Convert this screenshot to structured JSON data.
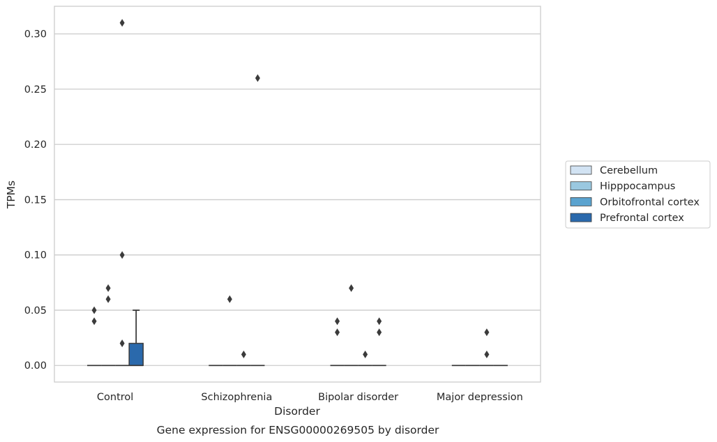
{
  "chart_data": {
    "type": "box",
    "title": "",
    "caption": "Gene expression for ENSG00000269505 by disorder",
    "xlabel": "Disorder",
    "ylabel": "TPMs",
    "ylim": [
      -0.015,
      0.325
    ],
    "yticks": [
      0.0,
      0.05,
      0.1,
      0.15,
      0.2,
      0.25,
      0.3
    ],
    "ytick_labels": [
      "0.00",
      "0.05",
      "0.10",
      "0.15",
      "0.20",
      "0.25",
      "0.30"
    ],
    "grid": "horizontal",
    "legend_position": "right",
    "categories": [
      "Control",
      "Schizophrenia",
      "Bipolar disorder",
      "Major depression"
    ],
    "series": [
      {
        "name": "Cerebellum",
        "color": "#d2e3f3",
        "boxes": [
          {
            "q1": 0,
            "median": 0,
            "q3": 0,
            "whisker_low": 0,
            "whisker_high": 0,
            "outliers": [
              0.05,
              0.04
            ]
          },
          {
            "q1": 0,
            "median": 0,
            "q3": 0,
            "whisker_low": 0,
            "whisker_high": 0,
            "outliers": []
          },
          {
            "q1": 0,
            "median": 0,
            "q3": 0,
            "whisker_low": 0,
            "whisker_high": 0,
            "outliers": [
              0.04,
              0.03
            ]
          },
          {
            "q1": 0,
            "median": 0,
            "q3": 0,
            "whisker_low": 0,
            "whisker_high": 0,
            "outliers": []
          }
        ]
      },
      {
        "name": "Hipppocampus",
        "color": "#9ac8e0",
        "boxes": [
          {
            "q1": 0,
            "median": 0,
            "q3": 0,
            "whisker_low": 0,
            "whisker_high": 0,
            "outliers": [
              0.07,
              0.06
            ]
          },
          {
            "q1": 0,
            "median": 0,
            "q3": 0,
            "whisker_low": 0,
            "whisker_high": 0,
            "outliers": [
              0.06
            ]
          },
          {
            "q1": 0,
            "median": 0,
            "q3": 0,
            "whisker_low": 0,
            "whisker_high": 0,
            "outliers": [
              0.07
            ]
          },
          {
            "q1": 0,
            "median": 0,
            "q3": 0,
            "whisker_low": 0,
            "whisker_high": 0,
            "outliers": []
          }
        ]
      },
      {
        "name": "Orbitofrontal cortex",
        "color": "#5ba3cf",
        "boxes": [
          {
            "q1": 0,
            "median": 0,
            "q3": 0,
            "whisker_low": 0,
            "whisker_high": 0,
            "outliers": [
              0.31,
              0.1,
              0.02
            ]
          },
          {
            "q1": 0,
            "median": 0,
            "q3": 0,
            "whisker_low": 0,
            "whisker_high": 0,
            "outliers": [
              0.01
            ]
          },
          {
            "q1": 0,
            "median": 0,
            "q3": 0,
            "whisker_low": 0,
            "whisker_high": 0,
            "outliers": [
              0.01
            ]
          },
          {
            "q1": 0,
            "median": 0,
            "q3": 0,
            "whisker_low": 0,
            "whisker_high": 0,
            "outliers": [
              0.03,
              0.01
            ]
          }
        ]
      },
      {
        "name": "Prefrontal cortex",
        "color": "#2a69ac",
        "boxes": [
          {
            "q1": 0,
            "median": 0,
            "q3": 0.02,
            "whisker_low": 0,
            "whisker_high": 0.05,
            "outliers": []
          },
          {
            "q1": 0,
            "median": 0,
            "q3": 0,
            "whisker_low": 0,
            "whisker_high": 0,
            "outliers": [
              0.26
            ]
          },
          {
            "q1": 0,
            "median": 0,
            "q3": 0,
            "whisker_low": 0,
            "whisker_high": 0,
            "outliers": [
              0.04,
              0.03
            ]
          },
          {
            "q1": 0,
            "median": 0,
            "q3": 0,
            "whisker_low": 0,
            "whisker_high": 0,
            "outliers": []
          }
        ]
      }
    ]
  }
}
